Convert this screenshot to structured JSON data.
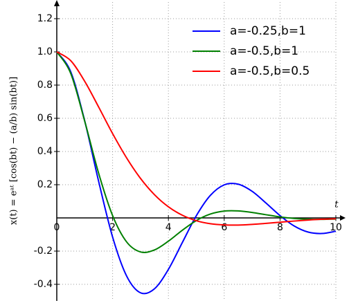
{
  "chart_data": {
    "type": "line",
    "ylabel": "x(t) = eᵃᵗ [cos(bt) − (a/b) sin(bt)]",
    "xlabel": "t",
    "x": [
      0,
      0.5,
      1,
      1.5,
      2,
      2.5,
      3,
      3.5,
      4,
      4.5,
      5,
      5.5,
      6,
      6.5,
      7,
      7.5,
      8,
      8.5,
      9,
      9.5,
      10
    ],
    "series": [
      {
        "name": "a=-0.25,b=1",
        "color": "#0000ff",
        "values": [
          1,
          0.88,
          0.585,
          0.22,
          -0.115,
          -0.349,
          -0.451,
          -0.427,
          -0.31,
          -0.148,
          0.013,
          0.135,
          0.199,
          0.203,
          0.16,
          0.089,
          0.014,
          -0.048,
          -0.085,
          -0.094,
          -0.08
        ]
      },
      {
        "name": "a=-0.5,b=1",
        "color": "#008000",
        "values": [
          1,
          0.87,
          0.583,
          0.269,
          0.014,
          -0.144,
          -0.205,
          -0.193,
          -0.14,
          -0.074,
          -0.016,
          0.023,
          0.041,
          0.042,
          0.033,
          0.019,
          0.006,
          -0.003,
          -0.008,
          -0.009,
          -0.007
        ]
      },
      {
        "name": "a=-0.5,b=0.5",
        "color": "#ff0000",
        "values": [
          1,
          0.947,
          0.823,
          0.668,
          0.508,
          0.362,
          0.238,
          0.14,
          0.067,
          0.016,
          -0.017,
          -0.035,
          -0.042,
          -0.043,
          -0.039,
          -0.033,
          -0.026,
          -0.019,
          -0.013,
          -0.008,
          -0.005
        ]
      }
    ],
    "xlim": [
      0,
      10
    ],
    "ylim": [
      -0.5,
      1.3
    ],
    "xticks": [
      0,
      2,
      4,
      6,
      8,
      10
    ],
    "yticks": [
      {
        "value": -0.4,
        "label": "-0.4"
      },
      -0.2,
      0.2,
      0.4,
      0.6,
      0.8,
      {
        "value": 1,
        "label": "1.0"
      },
      1.2
    ],
    "grid": true,
    "legend": "upper right"
  }
}
